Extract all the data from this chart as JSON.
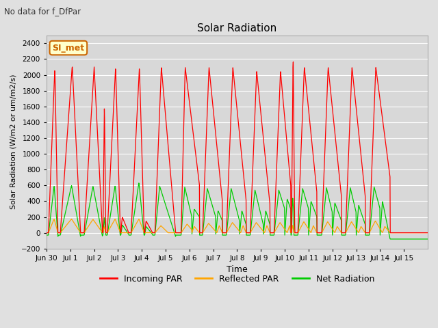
{
  "title": "Solar Radiation",
  "subtitle": "No data for f_DfPar",
  "xlabel": "Time",
  "ylabel": "Solar Radiation (W/m2 or um/m2/s)",
  "ylim": [
    -200,
    2500
  ],
  "yticks": [
    -200,
    0,
    200,
    400,
    600,
    800,
    1000,
    1200,
    1400,
    1600,
    1800,
    2000,
    2200,
    2400
  ],
  "xtick_labels": [
    "Jun 30",
    "Jul 1",
    "Jul 2",
    "Jul 3",
    "Jul 4",
    "Jul 5",
    "Jul 6",
    "Jul 7",
    "Jul 8",
    "Jul 9",
    "Jul 10",
    "Jul 11",
    "Jul 12",
    "Jul 13",
    "Jul 14",
    "Jul 15"
  ],
  "color_incoming": "#ff0000",
  "color_reflected": "#ffa500",
  "color_net": "#00cc00",
  "bg_color": "#e0e0e0",
  "plot_bg": "#d8d8d8",
  "legend_label_box": "SI_met",
  "legend_box_color": "#ffffcc",
  "legend_box_border": "#cc6600",
  "fig_width": 6.4,
  "fig_height": 4.8,
  "dpi": 100
}
